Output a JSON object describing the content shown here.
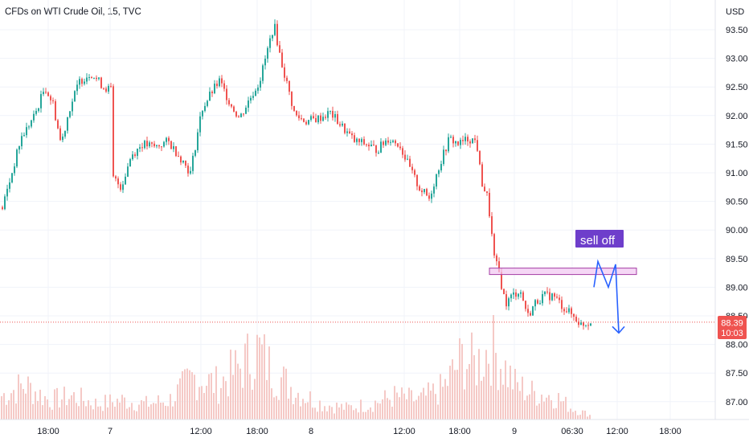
{
  "header": {
    "title": "CFDs on WTI Crude Oil, 15, TVC"
  },
  "yaxis": {
    "unit_label": "USD",
    "ticks": [
      "93.50",
      "93.00",
      "92.50",
      "92.00",
      "91.50",
      "91.00",
      "90.50",
      "90.00",
      "89.50",
      "89.00",
      "88.50",
      "88.00",
      "87.50",
      "87.00"
    ]
  },
  "xaxis": {
    "ticks": [
      "18:00",
      "7",
      "12:00",
      "18:00",
      "8",
      "12:00",
      "18:00",
      "9",
      "06:30",
      "12:00",
      "18:00"
    ]
  },
  "price_label": {
    "price": "88.39",
    "countdown": "10:03"
  },
  "annotation": {
    "text": "sell off"
  },
  "colors": {
    "up": "#26a69a",
    "down": "#ef5350",
    "volume": "#f5c9c6",
    "highlight_fill": "#f1c6f1",
    "highlight_stroke": "#a43ca4",
    "annotation_bg": "#6e3ecb",
    "arrow": "#2962ff",
    "price_line": "#ef5350"
  },
  "chart_data": {
    "type": "candlestick",
    "title": "CFDs on WTI Crude Oil, 15, TVC",
    "ylabel": "USD",
    "ylim": [
      86.7,
      93.95
    ],
    "x_ticks": [
      "18:00",
      "7",
      "12:00",
      "18:00",
      "8",
      "12:00",
      "18:00",
      "9",
      "06:30",
      "12:00",
      "18:00"
    ],
    "price_path": [
      [
        0,
        90.3
      ],
      [
        12,
        90.9
      ],
      [
        25,
        91.6
      ],
      [
        42,
        92.0
      ],
      [
        55,
        92.5
      ],
      [
        65,
        92.2
      ],
      [
        75,
        91.5
      ],
      [
        85,
        92.1
      ],
      [
        98,
        92.6
      ],
      [
        112,
        92.75
      ],
      [
        128,
        92.5
      ],
      [
        137,
        92.45
      ],
      [
        140,
        90.9
      ],
      [
        150,
        90.75
      ],
      [
        162,
        91.3
      ],
      [
        176,
        91.5
      ],
      [
        192,
        91.45
      ],
      [
        208,
        91.55
      ],
      [
        222,
        91.3
      ],
      [
        236,
        91.0
      ],
      [
        250,
        92.1
      ],
      [
        262,
        92.4
      ],
      [
        272,
        92.6
      ],
      [
        286,
        92.2
      ],
      [
        297,
        91.95
      ],
      [
        310,
        92.3
      ],
      [
        322,
        92.6
      ],
      [
        333,
        93.2
      ],
      [
        340,
        93.6
      ],
      [
        348,
        93.0
      ],
      [
        357,
        92.5
      ],
      [
        366,
        92.0
      ],
      [
        380,
        91.9
      ],
      [
        395,
        91.95
      ],
      [
        410,
        92.05
      ],
      [
        425,
        91.8
      ],
      [
        440,
        91.55
      ],
      [
        455,
        91.5
      ],
      [
        468,
        91.4
      ],
      [
        482,
        91.6
      ],
      [
        496,
        91.5
      ],
      [
        508,
        91.1
      ],
      [
        520,
        90.75
      ],
      [
        533,
        90.55
      ],
      [
        545,
        91.1
      ],
      [
        558,
        91.6
      ],
      [
        570,
        91.5
      ],
      [
        582,
        91.6
      ],
      [
        592,
        91.55
      ],
      [
        598,
        90.85
      ],
      [
        606,
        90.55
      ],
      [
        614,
        89.5
      ],
      [
        620,
        89.25
      ],
      [
        628,
        88.7
      ],
      [
        636,
        88.85
      ],
      [
        646,
        88.95
      ],
      [
        656,
        88.5
      ],
      [
        666,
        88.75
      ],
      [
        676,
        88.85
      ],
      [
        688,
        88.85
      ],
      [
        700,
        88.65
      ],
      [
        712,
        88.5
      ],
      [
        722,
        88.35
      ],
      [
        734,
        88.4
      ]
    ],
    "last_price": 88.39,
    "volume_profile": [
      [
        0,
        0.3
      ],
      [
        30,
        0.45
      ],
      [
        60,
        0.25
      ],
      [
        90,
        0.3
      ],
      [
        120,
        0.2
      ],
      [
        150,
        0.25
      ],
      [
        180,
        0.2
      ],
      [
        210,
        0.25
      ],
      [
        240,
        0.55
      ],
      [
        270,
        0.45
      ],
      [
        300,
        0.7
      ],
      [
        320,
        0.9
      ],
      [
        340,
        0.6
      ],
      [
        370,
        0.35
      ],
      [
        400,
        0.2
      ],
      [
        430,
        0.15
      ],
      [
        460,
        0.2
      ],
      [
        490,
        0.3
      ],
      [
        520,
        0.25
      ],
      [
        550,
        0.4
      ],
      [
        575,
        0.8
      ],
      [
        590,
        0.7
      ],
      [
        610,
        0.95
      ],
      [
        625,
        0.7
      ],
      [
        640,
        0.45
      ],
      [
        660,
        0.35
      ],
      [
        690,
        0.3
      ],
      [
        710,
        0.15
      ],
      [
        735,
        0.05
      ]
    ],
    "zone": {
      "from": 89.25,
      "to": 89.32,
      "label": "sell off"
    },
    "projection": [
      [
        89.0
      ],
      [
        89.45
      ],
      [
        89.0
      ],
      [
        89.4
      ],
      [
        88.2
      ]
    ],
    "grid": true
  }
}
